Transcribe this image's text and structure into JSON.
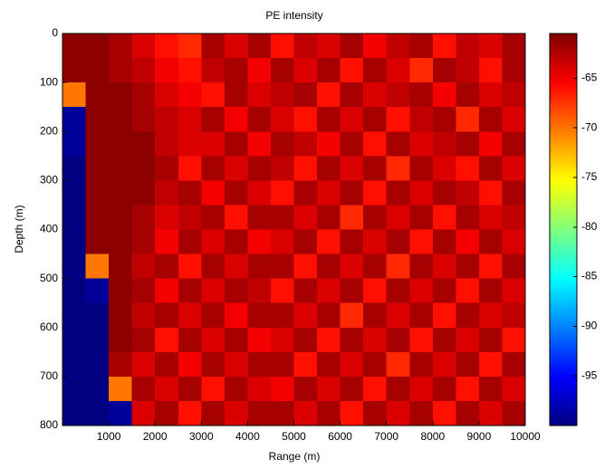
{
  "chart_data": {
    "type": "heatmap",
    "title": "PE intensity",
    "xlabel": "Range (m)",
    "ylabel": "Depth (m)",
    "xlim": [
      0,
      10000
    ],
    "xticks": [
      1000,
      2000,
      3000,
      4000,
      5000,
      6000,
      7000,
      8000,
      9000,
      10000
    ],
    "ylim": [
      0,
      800
    ],
    "yticks": [
      0,
      100,
      200,
      300,
      400,
      500,
      600,
      700,
      800
    ],
    "y_reversed": true,
    "clim": [
      -100,
      -60.5
    ],
    "cticks": [
      -95,
      -90,
      -85,
      -80,
      -75,
      -70,
      -65
    ],
    "colormap": "jet",
    "x": [
      250,
      750,
      1250,
      1750,
      2250,
      2750,
      3250,
      3750,
      4250,
      4750,
      5250,
      5750,
      6250,
      6750,
      7250,
      7750,
      8250,
      8750,
      9250,
      9750
    ],
    "y": [
      25,
      75,
      125,
      175,
      225,
      275,
      325,
      375,
      425,
      475,
      525,
      575,
      625,
      675,
      725,
      775
    ],
    "z": [
      [
        -61,
        -61,
        -62,
        -64,
        -66,
        -67,
        -62,
        -64,
        -62,
        -66,
        -63,
        -64,
        -62,
        -65,
        -63,
        -62,
        -66,
        -63,
        -64,
        -62
      ],
      [
        -61,
        -61,
        -62,
        -63,
        -65,
        -66,
        -63,
        -62,
        -65,
        -62,
        -64,
        -62,
        -66,
        -62,
        -64,
        -67,
        -62,
        -63,
        -66,
        -62
      ],
      [
        -70,
        -61,
        -61,
        -62,
        -64,
        -65,
        -66,
        -62,
        -64,
        -63,
        -62,
        -66,
        -62,
        -64,
        -63,
        -62,
        -65,
        -62,
        -64,
        -63
      ],
      [
        -99,
        -61,
        -61,
        -62,
        -63,
        -64,
        -62,
        -65,
        -62,
        -64,
        -66,
        -62,
        -64,
        -62,
        -66,
        -63,
        -62,
        -67,
        -62,
        -64
      ],
      [
        -99,
        -61,
        -61,
        -61,
        -63,
        -64,
        -64,
        -62,
        -65,
        -62,
        -63,
        -65,
        -62,
        -66,
        -62,
        -64,
        -63,
        -62,
        -65,
        -62
      ],
      [
        -100,
        -61,
        -61,
        -61,
        -62,
        -66,
        -62,
        -64,
        -62,
        -63,
        -66,
        -62,
        -64,
        -62,
        -67,
        -62,
        -64,
        -66,
        -62,
        -64
      ],
      [
        -100,
        -61,
        -61,
        -61,
        -63,
        -62,
        -65,
        -62,
        -64,
        -66,
        -62,
        -64,
        -62,
        -66,
        -62,
        -64,
        -62,
        -63,
        -66,
        -62
      ],
      [
        -100,
        -61,
        -61,
        -62,
        -64,
        -63,
        -62,
        -66,
        -62,
        -62,
        -64,
        -62,
        -67,
        -62,
        -64,
        -62,
        -66,
        -62,
        -64,
        -63
      ],
      [
        -100,
        -61,
        -61,
        -62,
        -65,
        -62,
        -64,
        -62,
        -65,
        -64,
        -62,
        -66,
        -62,
        -64,
        -62,
        -66,
        -62,
        -65,
        -62,
        -64
      ],
      [
        -100,
        -70,
        -61,
        -63,
        -62,
        -66,
        -62,
        -64,
        -62,
        -62,
        -66,
        -62,
        -64,
        -62,
        -67,
        -62,
        -64,
        -62,
        -66,
        -62
      ],
      [
        -100,
        -99,
        -61,
        -62,
        -65,
        -62,
        -64,
        -62,
        -63,
        -66,
        -62,
        -64,
        -62,
        -66,
        -62,
        -64,
        -62,
        -66,
        -62,
        -64
      ],
      [
        -100,
        -100,
        -61,
        -63,
        -62,
        -64,
        -62,
        -65,
        -62,
        -62,
        -64,
        -62,
        -67,
        -62,
        -64,
        -62,
        -66,
        -62,
        -64,
        -63
      ],
      [
        -100,
        -100,
        -61,
        -62,
        -66,
        -62,
        -64,
        -62,
        -65,
        -64,
        -62,
        -66,
        -62,
        -64,
        -62,
        -66,
        -62,
        -64,
        -62,
        -66
      ],
      [
        -100,
        -100,
        -62,
        -64,
        -62,
        -65,
        -62,
        -64,
        -62,
        -62,
        -66,
        -62,
        -64,
        -62,
        -67,
        -62,
        -64,
        -62,
        -66,
        -62
      ],
      [
        -100,
        -100,
        -70,
        -62,
        -64,
        -62,
        -66,
        -62,
        -64,
        -65,
        -62,
        -64,
        -62,
        -66,
        -62,
        -64,
        -62,
        -66,
        -62,
        -64
      ],
      [
        -100,
        -100,
        -99,
        -64,
        -62,
        -66,
        -62,
        -64,
        -62,
        -62,
        -64,
        -62,
        -66,
        -62,
        -64,
        -62,
        -66,
        -62,
        -64,
        -62
      ]
    ]
  }
}
